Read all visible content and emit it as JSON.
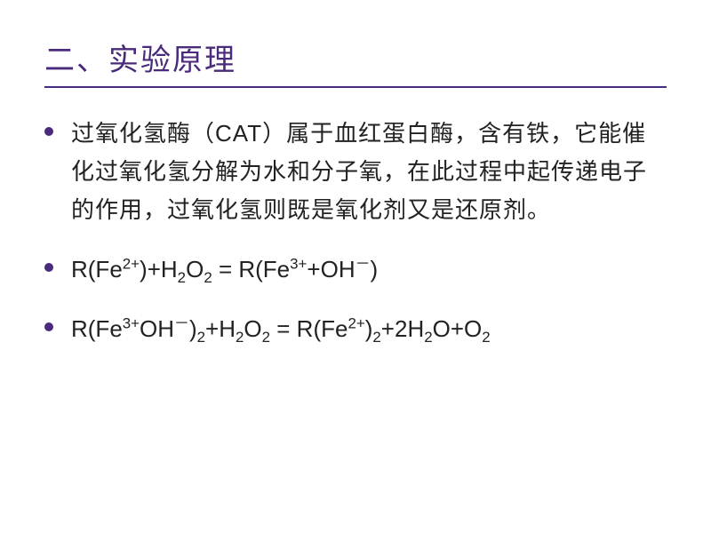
{
  "title": "二、实验原理",
  "items": [
    {
      "type": "text",
      "content": "过氧化氢酶（CAT）属于血红蛋白酶，含有铁，它能催化过氧化氢分解为水和分子氧，在此过程中起传递电子的作用，过氧化氢则既是氧化剂又是还原剂。"
    },
    {
      "type": "formula",
      "content": "R(Fe<sup>2+</sup>)+H<sub>2</sub>O<sub>2</sub> = R(Fe<sup>3+</sup>+OH<sup>－</sup>)"
    },
    {
      "type": "formula",
      "content": "R(Fe<sup>3+</sup>OH<sup>－</sup>)<sub>2</sub>+H<sub>2</sub>O<sub>2</sub> = R(Fe<sup>2+</sup>)<sub>2</sub>+2H<sub>2</sub>O+O<sub>2</sub>"
    }
  ],
  "style": {
    "accent": "#4a2a7a",
    "title_size": 34,
    "body_size": 26,
    "bg": "#ffffff"
  }
}
